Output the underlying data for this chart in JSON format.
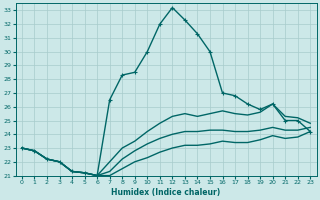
{
  "title": "",
  "xlabel": "Humidex (Indice chaleur)",
  "xlim": [
    -0.5,
    23.5
  ],
  "ylim": [
    21,
    33.5
  ],
  "yticks": [
    21,
    22,
    23,
    24,
    25,
    26,
    27,
    28,
    29,
    30,
    31,
    32,
    33
  ],
  "xticks": [
    0,
    1,
    2,
    3,
    4,
    5,
    6,
    7,
    8,
    9,
    10,
    11,
    12,
    13,
    14,
    15,
    16,
    17,
    18,
    19,
    20,
    21,
    22,
    23
  ],
  "bg_color": "#cce8e8",
  "grid_color": "#a8cccc",
  "line_color": "#006666",
  "lines": [
    {
      "x": [
        0,
        1,
        2,
        3,
        4,
        5,
        6,
        7,
        8,
        9,
        10,
        11,
        12,
        13,
        14,
        15,
        16,
        17,
        18,
        19,
        20,
        21,
        22,
        23
      ],
      "y": [
        23.0,
        22.8,
        22.2,
        22.0,
        21.3,
        21.2,
        21.0,
        26.5,
        28.3,
        28.5,
        30.0,
        32.0,
        33.2,
        32.3,
        31.3,
        30.0,
        27.0,
        26.8,
        26.2,
        25.8,
        26.2,
        25.0,
        25.0,
        24.2
      ],
      "color": "#006666",
      "linewidth": 1.0,
      "marker": "+"
    },
    {
      "x": [
        0,
        1,
        2,
        3,
        4,
        5,
        6,
        7,
        8,
        9,
        10,
        11,
        12,
        13,
        14,
        15,
        16,
        17,
        18,
        19,
        20,
        21,
        22,
        23
      ],
      "y": [
        23.0,
        22.8,
        22.2,
        22.0,
        21.3,
        21.2,
        21.0,
        22.0,
        23.0,
        23.5,
        24.2,
        24.8,
        25.3,
        25.5,
        25.3,
        25.5,
        25.7,
        25.5,
        25.4,
        25.6,
        26.2,
        25.3,
        25.2,
        24.8
      ],
      "color": "#006666",
      "linewidth": 1.0,
      "marker": null
    },
    {
      "x": [
        0,
        1,
        2,
        3,
        4,
        5,
        6,
        7,
        8,
        9,
        10,
        11,
        12,
        13,
        14,
        15,
        16,
        17,
        18,
        19,
        20,
        21,
        22,
        23
      ],
      "y": [
        23.0,
        22.8,
        22.2,
        22.0,
        21.3,
        21.2,
        21.0,
        21.3,
        22.2,
        22.8,
        23.3,
        23.7,
        24.0,
        24.2,
        24.2,
        24.3,
        24.3,
        24.2,
        24.2,
        24.3,
        24.5,
        24.3,
        24.3,
        24.5
      ],
      "color": "#006666",
      "linewidth": 1.0,
      "marker": null
    },
    {
      "x": [
        0,
        1,
        2,
        3,
        4,
        5,
        6,
        7,
        8,
        9,
        10,
        11,
        12,
        13,
        14,
        15,
        16,
        17,
        18,
        19,
        20,
        21,
        22,
        23
      ],
      "y": [
        23.0,
        22.8,
        22.2,
        22.0,
        21.3,
        21.2,
        21.0,
        21.0,
        21.5,
        22.0,
        22.3,
        22.7,
        23.0,
        23.2,
        23.2,
        23.3,
        23.5,
        23.4,
        23.4,
        23.6,
        23.9,
        23.7,
        23.8,
        24.2
      ],
      "color": "#006666",
      "linewidth": 1.0,
      "marker": null
    }
  ]
}
